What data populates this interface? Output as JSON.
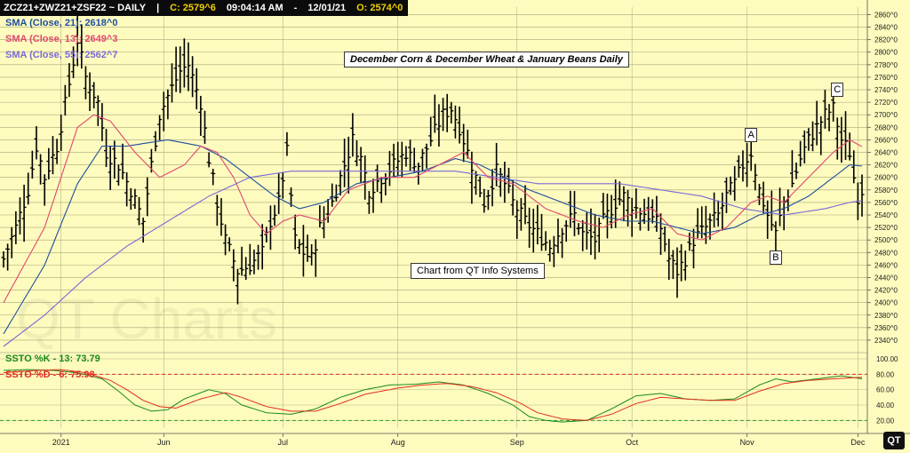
{
  "header": {
    "symbol": "ZCZ21+ZWZ21+ZSF22 ~ DAILY",
    "sep": "|",
    "close": "C: 2579^6",
    "time": "09:04:14 AM",
    "dash": "-",
    "date": "12/01/21",
    "open": "O: 2574^0"
  },
  "legend": {
    "sma21": "SMA (Close, 21): 2618^0",
    "sma13": "SMA (Close, 13): 2649^3",
    "sma55": "SMA (Close, 55): 2562^7",
    "sstoK": "SSTO %K - 13: 73.79",
    "sstoD": "SSTO %D - 6: 75.98"
  },
  "title": "December Corn & December Wheat & January Beans Daily",
  "credit": "Chart from QT Info Systems",
  "watermark": "QT Charts",
  "logo": "QT",
  "colors": {
    "background": "#fdfbbe",
    "price": "#000000",
    "sma21": "#1f4e9e",
    "sma13": "#e04870",
    "sma55": "#7a6ad8",
    "sstoK": "#1a8a1a",
    "sstoD": "#e03020",
    "overbought": "#d03030",
    "oversold": "#2a9a2a"
  },
  "chart_data": {
    "type": "ohlc",
    "price_axis": {
      "ticks": [
        "2340^0",
        "2360^0",
        "2380^0",
        "2400^0",
        "2420^0",
        "2440^0",
        "2460^0",
        "2480^0",
        "2500^0",
        "2520^0",
        "2540^0",
        "2560^0",
        "2580^0",
        "2600^0",
        "2620^0",
        "2640^0",
        "2660^0",
        "2680^0",
        "2700^0",
        "2720^0",
        "2740^0",
        "2760^0",
        "2780^0",
        "2800^0",
        "2820^0",
        "2840^0",
        "2860^0"
      ],
      "range": [
        2330,
        2872
      ]
    },
    "osc_axis": {
      "ticks": [
        "20.00",
        "40.00",
        "60.00",
        "80.00",
        "100.00"
      ],
      "range": [
        10,
        100
      ],
      "overbought": 80,
      "oversold": 20
    },
    "x_labels": [
      {
        "label": "2021",
        "bar": 14
      },
      {
        "label": "Jun",
        "bar": 39
      },
      {
        "label": "Jul",
        "bar": 68
      },
      {
        "label": "Aug",
        "bar": 96
      },
      {
        "label": "Sep",
        "bar": 125
      },
      {
        "label": "Oct",
        "bar": 153
      },
      {
        "label": "Nov",
        "bar": 181
      },
      {
        "label": "Dec",
        "bar": 208
      }
    ],
    "bar_count": 210,
    "price_anchors": [
      [
        0,
        2470
      ],
      [
        3,
        2520
      ],
      [
        6,
        2580
      ],
      [
        8,
        2650
      ],
      [
        10,
        2600
      ],
      [
        13,
        2650
      ],
      [
        16,
        2750
      ],
      [
        18,
        2820
      ],
      [
        20,
        2760
      ],
      [
        23,
        2720
      ],
      [
        25,
        2640
      ],
      [
        28,
        2620
      ],
      [
        31,
        2580
      ],
      [
        34,
        2530
      ],
      [
        36,
        2620
      ],
      [
        38,
        2700
      ],
      [
        40,
        2730
      ],
      [
        43,
        2770
      ],
      [
        45,
        2780
      ],
      [
        48,
        2720
      ],
      [
        50,
        2630
      ],
      [
        52,
        2560
      ],
      [
        54,
        2500
      ],
      [
        57,
        2450
      ],
      [
        60,
        2460
      ],
      [
        63,
        2480
      ],
      [
        65,
        2530
      ],
      [
        67,
        2560
      ],
      [
        69,
        2640
      ],
      [
        71,
        2500
      ],
      [
        73,
        2480
      ],
      [
        75,
        2470
      ],
      [
        77,
        2520
      ],
      [
        80,
        2560
      ],
      [
        83,
        2620
      ],
      [
        85,
        2660
      ],
      [
        87,
        2630
      ],
      [
        89,
        2580
      ],
      [
        92,
        2600
      ],
      [
        95,
        2620
      ],
      [
        98,
        2640
      ],
      [
        101,
        2620
      ],
      [
        104,
        2660
      ],
      [
        107,
        2700
      ],
      [
        109,
        2710
      ],
      [
        111,
        2680
      ],
      [
        113,
        2640
      ],
      [
        115,
        2600
      ],
      [
        117,
        2560
      ],
      [
        120,
        2610
      ],
      [
        122,
        2590
      ],
      [
        124,
        2560
      ],
      [
        127,
        2530
      ],
      [
        130,
        2510
      ],
      [
        133,
        2490
      ],
      [
        136,
        2520
      ],
      [
        139,
        2540
      ],
      [
        141,
        2510
      ],
      [
        144,
        2500
      ],
      [
        146,
        2530
      ],
      [
        149,
        2560
      ],
      [
        151,
        2570
      ],
      [
        154,
        2550
      ],
      [
        157,
        2540
      ],
      [
        160,
        2520
      ],
      [
        162,
        2470
      ],
      [
        164,
        2450
      ],
      [
        166,
        2470
      ],
      [
        168,
        2500
      ],
      [
        171,
        2520
      ],
      [
        174,
        2540
      ],
      [
        176,
        2570
      ],
      [
        178,
        2590
      ],
      [
        180,
        2620
      ],
      [
        182,
        2640
      ],
      [
        184,
        2580
      ],
      [
        186,
        2540
      ],
      [
        188,
        2510
      ],
      [
        190,
        2560
      ],
      [
        192,
        2590
      ],
      [
        194,
        2630
      ],
      [
        196,
        2660
      ],
      [
        198,
        2680
      ],
      [
        200,
        2700
      ],
      [
        202,
        2710
      ],
      [
        204,
        2660
      ],
      [
        206,
        2640
      ],
      [
        207,
        2600
      ],
      [
        208,
        2570
      ],
      [
        209,
        2580
      ]
    ],
    "sma13_anchors": [
      [
        0,
        2400
      ],
      [
        10,
        2520
      ],
      [
        18,
        2680
      ],
      [
        22,
        2700
      ],
      [
        26,
        2690
      ],
      [
        32,
        2640
      ],
      [
        38,
        2600
      ],
      [
        44,
        2620
      ],
      [
        48,
        2650
      ],
      [
        52,
        2640
      ],
      [
        56,
        2600
      ],
      [
        60,
        2540
      ],
      [
        64,
        2510
      ],
      [
        68,
        2530
      ],
      [
        72,
        2540
      ],
      [
        78,
        2530
      ],
      [
        84,
        2580
      ],
      [
        92,
        2600
      ],
      [
        100,
        2600
      ],
      [
        106,
        2620
      ],
      [
        112,
        2640
      ],
      [
        118,
        2600
      ],
      [
        124,
        2590
      ],
      [
        132,
        2550
      ],
      [
        140,
        2530
      ],
      [
        146,
        2520
      ],
      [
        152,
        2540
      ],
      [
        158,
        2550
      ],
      [
        164,
        2510
      ],
      [
        170,
        2500
      ],
      [
        176,
        2520
      ],
      [
        182,
        2560
      ],
      [
        186,
        2570
      ],
      [
        190,
        2560
      ],
      [
        196,
        2600
      ],
      [
        202,
        2640
      ],
      [
        206,
        2660
      ],
      [
        209,
        2649
      ]
    ],
    "sma21_anchors": [
      [
        0,
        2350
      ],
      [
        10,
        2460
      ],
      [
        18,
        2590
      ],
      [
        24,
        2650
      ],
      [
        30,
        2650
      ],
      [
        40,
        2660
      ],
      [
        48,
        2650
      ],
      [
        54,
        2630
      ],
      [
        60,
        2600
      ],
      [
        66,
        2570
      ],
      [
        72,
        2550
      ],
      [
        78,
        2560
      ],
      [
        86,
        2590
      ],
      [
        94,
        2600
      ],
      [
        102,
        2610
      ],
      [
        110,
        2630
      ],
      [
        116,
        2620
      ],
      [
        122,
        2600
      ],
      [
        128,
        2580
      ],
      [
        136,
        2560
      ],
      [
        144,
        2540
      ],
      [
        152,
        2530
      ],
      [
        158,
        2530
      ],
      [
        164,
        2520
      ],
      [
        170,
        2510
      ],
      [
        178,
        2520
      ],
      [
        184,
        2540
      ],
      [
        190,
        2550
      ],
      [
        196,
        2570
      ],
      [
        202,
        2600
      ],
      [
        206,
        2620
      ],
      [
        209,
        2618
      ]
    ],
    "sma55_anchors": [
      [
        0,
        2330
      ],
      [
        10,
        2380
      ],
      [
        20,
        2440
      ],
      [
        30,
        2490
      ],
      [
        40,
        2530
      ],
      [
        50,
        2570
      ],
      [
        60,
        2600
      ],
      [
        70,
        2610
      ],
      [
        80,
        2610
      ],
      [
        90,
        2610
      ],
      [
        100,
        2610
      ],
      [
        110,
        2610
      ],
      [
        120,
        2600
      ],
      [
        130,
        2590
      ],
      [
        140,
        2590
      ],
      [
        150,
        2590
      ],
      [
        160,
        2580
      ],
      [
        170,
        2570
      ],
      [
        180,
        2550
      ],
      [
        190,
        2540
      ],
      [
        200,
        2550
      ],
      [
        206,
        2560
      ],
      [
        209,
        2563
      ]
    ],
    "ssto_k_anchors": [
      [
        0,
        85
      ],
      [
        6,
        86
      ],
      [
        12,
        85
      ],
      [
        18,
        82
      ],
      [
        24,
        74
      ],
      [
        28,
        58
      ],
      [
        32,
        40
      ],
      [
        36,
        32
      ],
      [
        40,
        34
      ],
      [
        44,
        48
      ],
      [
        50,
        60
      ],
      [
        54,
        55
      ],
      [
        58,
        40
      ],
      [
        64,
        30
      ],
      [
        70,
        28
      ],
      [
        76,
        35
      ],
      [
        82,
        50
      ],
      [
        88,
        60
      ],
      [
        94,
        66
      ],
      [
        100,
        67
      ],
      [
        106,
        70
      ],
      [
        112,
        66
      ],
      [
        118,
        55
      ],
      [
        124,
        40
      ],
      [
        128,
        25
      ],
      [
        132,
        20
      ],
      [
        136,
        18
      ],
      [
        142,
        20
      ],
      [
        148,
        35
      ],
      [
        154,
        52
      ],
      [
        160,
        55
      ],
      [
        166,
        48
      ],
      [
        172,
        46
      ],
      [
        178,
        48
      ],
      [
        184,
        66
      ],
      [
        188,
        74
      ],
      [
        192,
        70
      ],
      [
        198,
        74
      ],
      [
        204,
        78
      ],
      [
        209,
        74
      ]
    ],
    "ssto_d_anchors": [
      [
        0,
        82
      ],
      [
        8,
        85
      ],
      [
        14,
        86
      ],
      [
        20,
        82
      ],
      [
        26,
        72
      ],
      [
        30,
        60
      ],
      [
        34,
        46
      ],
      [
        38,
        38
      ],
      [
        42,
        36
      ],
      [
        48,
        48
      ],
      [
        54,
        56
      ],
      [
        58,
        50
      ],
      [
        64,
        38
      ],
      [
        70,
        32
      ],
      [
        76,
        32
      ],
      [
        82,
        42
      ],
      [
        88,
        54
      ],
      [
        96,
        62
      ],
      [
        102,
        66
      ],
      [
        108,
        68
      ],
      [
        114,
        64
      ],
      [
        120,
        56
      ],
      [
        126,
        42
      ],
      [
        130,
        30
      ],
      [
        136,
        22
      ],
      [
        142,
        20
      ],
      [
        148,
        28
      ],
      [
        154,
        42
      ],
      [
        160,
        50
      ],
      [
        166,
        48
      ],
      [
        172,
        46
      ],
      [
        178,
        46
      ],
      [
        184,
        58
      ],
      [
        190,
        68
      ],
      [
        196,
        72
      ],
      [
        202,
        74
      ],
      [
        209,
        76
      ]
    ],
    "annotations": [
      {
        "label": "A",
        "bar": 182,
        "price": 2668
      },
      {
        "label": "B",
        "bar": 188,
        "price": 2472
      },
      {
        "label": "C",
        "bar": 203,
        "price": 2740
      }
    ]
  }
}
